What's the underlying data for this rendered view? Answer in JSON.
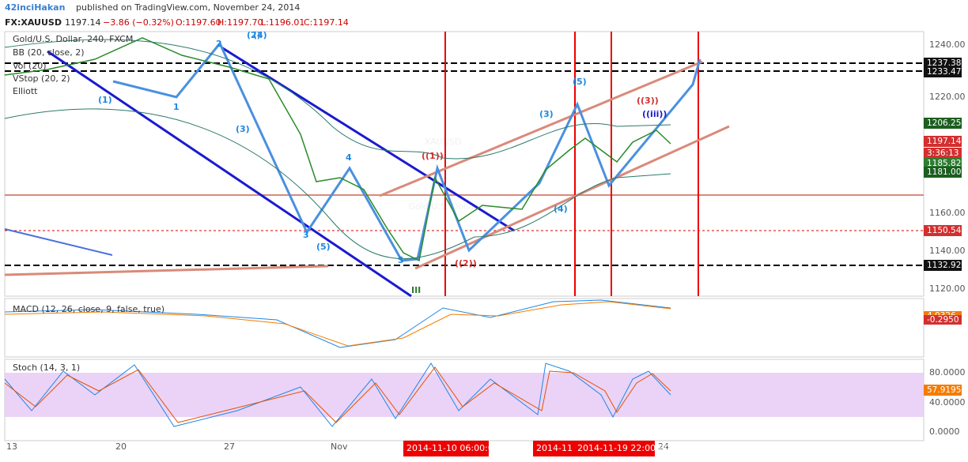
{
  "header": {
    "author": "42inciHakan",
    "published": "published on TradingView.com, November 24, 2014",
    "symbol": "FX:XAUUSD",
    "last": "1197.14",
    "change": "−3.86 (−0.32%)",
    "open": "O:1197.60",
    "high": "H:1197.70",
    "low": "L:1196.01",
    "close": "C:1197.14"
  },
  "legend": [
    "Gold/U.S. Dollar, 240, FXCM",
    "BB (20, close, 2)",
    "Vol (20)",
    "VStop (20, 2)",
    "Elliott"
  ],
  "watermark": {
    "symbol": "XAUUSD",
    "name": "Gold/U.S. Dollar"
  },
  "price_axis": {
    "ticks": [
      "1240.00",
      "1220.00",
      "1160.00",
      "1140.00",
      "1120.00"
    ],
    "tags": [
      "1237.38",
      "1233.47",
      "1206.25",
      "1197.14",
      "3:36:13",
      "1185.82",
      "1181.00",
      "1150.54",
      "1132.92"
    ]
  },
  "macd": {
    "title": "MACD (12, 26, close, 9, false, true)",
    "tags": [
      "4.0326",
      "-0.2950"
    ]
  },
  "stoch": {
    "title": "Stoch (14, 3, 1)",
    "ticks": [
      "80.0000",
      "40.0000",
      "0.0000"
    ],
    "tag": "57.9195"
  },
  "time_axis": {
    "labels": [
      "13",
      "20",
      "27",
      "Nov",
      "24"
    ],
    "highlights": [
      "2014-11-10 06:00:00",
      "2014-11",
      "2014-11-19 22:00:00"
    ]
  },
  "waves": [
    "(1)",
    "(2)",
    "(3)",
    "(4)",
    "(5)",
    "(5)",
    "(3)",
    "(4)",
    "III",
    "((1))",
    "((2))",
    "((3))",
    "((iii))",
    "1",
    "2",
    "3",
    "4",
    "5"
  ]
}
